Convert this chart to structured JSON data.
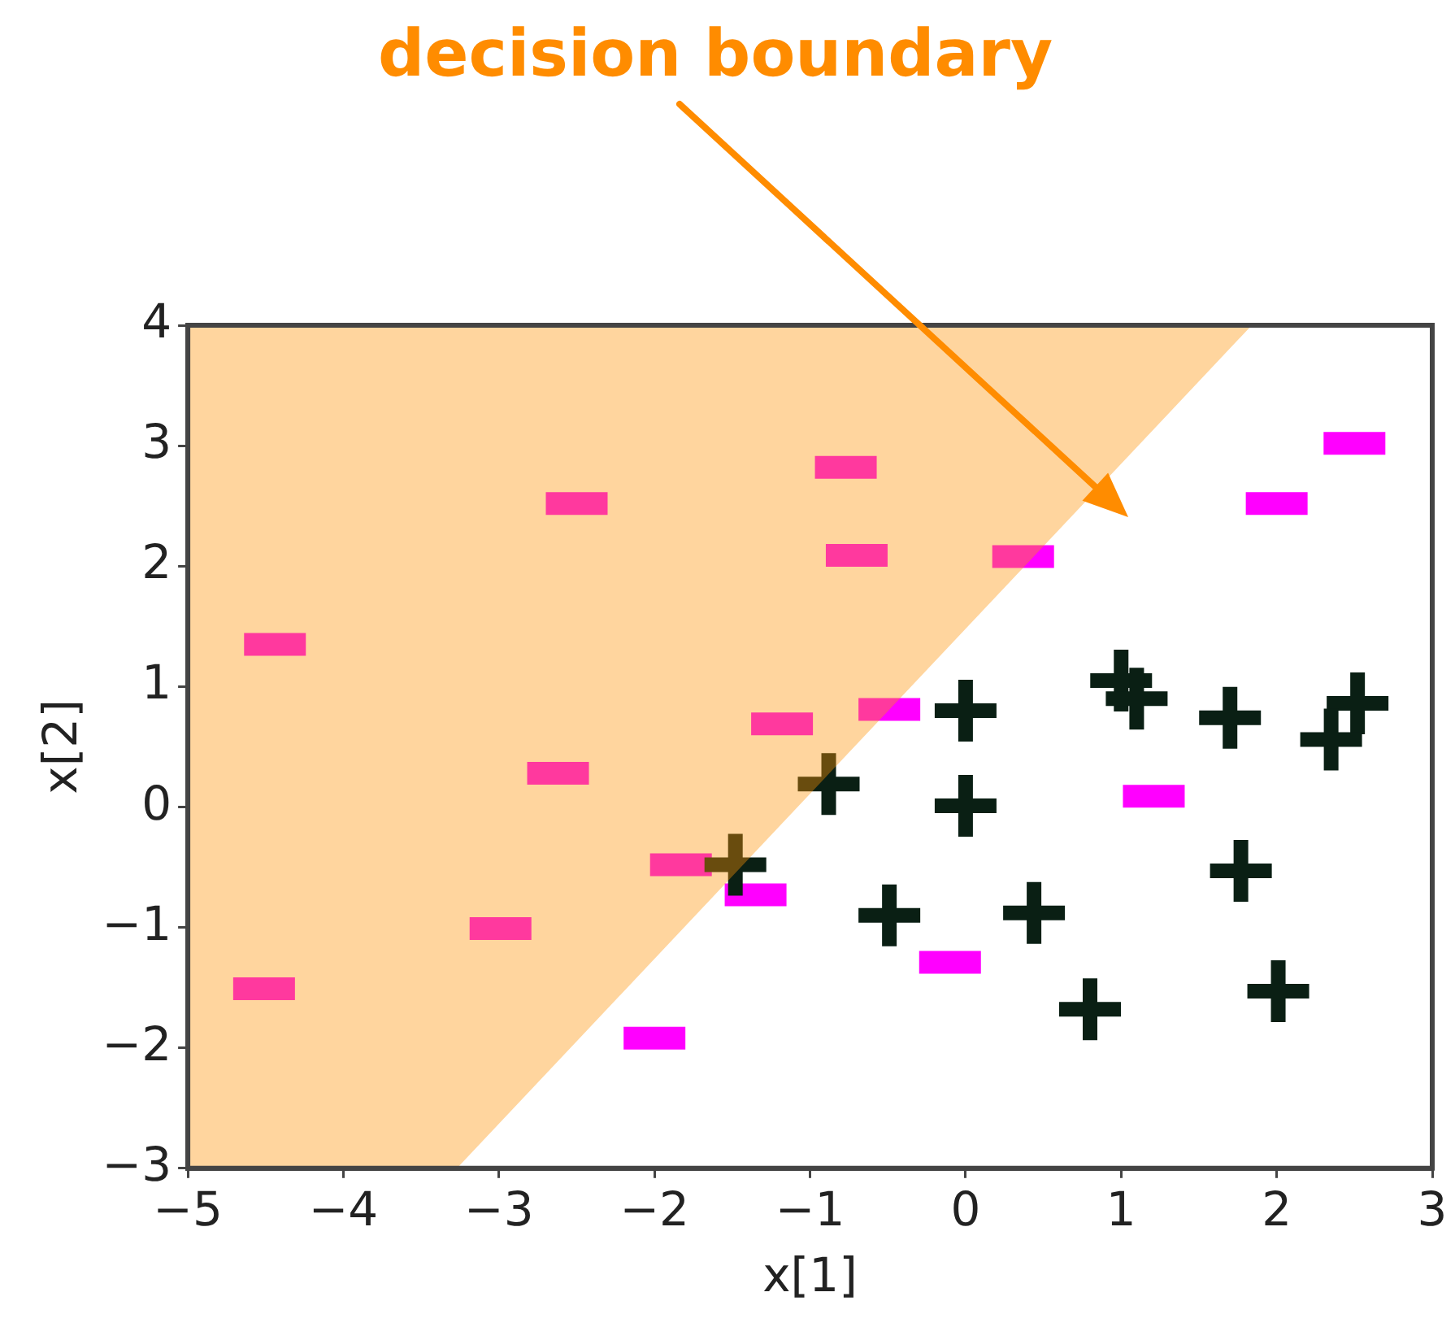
{
  "chart_data": {
    "type": "scatter",
    "xlabel": "x[1]",
    "ylabel": "x[2]",
    "annotations": [
      "decision boundary"
    ],
    "xlim": [
      -5,
      3
    ],
    "ylim": [
      -3,
      4
    ],
    "xticks": [
      {
        "value": -5,
        "label": "−5"
      },
      {
        "value": -4,
        "label": "−4"
      },
      {
        "value": -3,
        "label": "−3"
      },
      {
        "value": -2,
        "label": "−2"
      },
      {
        "value": -1,
        "label": "−1"
      },
      0,
      1,
      2,
      3
    ],
    "yticks": [
      {
        "value": -3,
        "label": "−3"
      },
      {
        "value": -2,
        "label": "−2"
      },
      {
        "value": -1,
        "label": "−1"
      },
      0,
      1,
      2,
      3,
      4
    ],
    "grid": false,
    "legend": false,
    "series": [
      {
        "type": "area",
        "color": "#ff9405",
        "x": [
          -5,
          -5,
          -3.27,
          1.84
        ],
        "values": [
          4,
          -3,
          -3,
          4
        ]
      },
      {
        "color": "#ff00ff",
        "x": [
          -4.44,
          -2.5,
          -2.62,
          -2.99,
          -4.51,
          -1.83,
          -2.0,
          -1.35,
          -0.77,
          -0.7,
          0.37,
          -1.18,
          -0.49,
          2.5,
          2.0,
          1.21,
          -0.1
        ],
        "values": [
          1.35,
          2.52,
          0.28,
          -1.01,
          -1.51,
          -0.48,
          -1.92,
          -0.73,
          2.82,
          2.09,
          2.08,
          0.69,
          0.81,
          3.02,
          2.52,
          0.09,
          -1.29
        ]
      },
      {
        "marker": "cross",
        "color": "#0a1f14",
        "x": [
          0,
          1.0,
          1.1,
          1.7,
          2.52,
          2.35,
          -0.88,
          0,
          1.77,
          -0.49,
          0.44,
          0.8,
          2.01,
          -1.48
        ],
        "values": [
          0.8,
          1.05,
          0.9,
          0.74,
          0.86,
          0.56,
          0.19,
          0.01,
          -0.53,
          -0.9,
          -0.88,
          -1.68,
          -1.53,
          -0.48
        ]
      }
    ]
  }
}
